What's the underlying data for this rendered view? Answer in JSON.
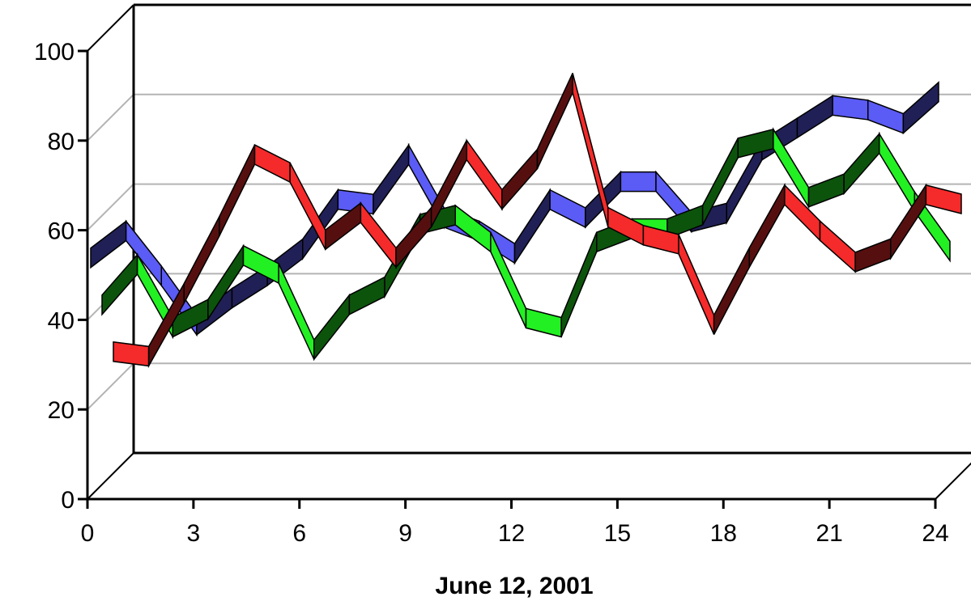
{
  "chart_data": {
    "type": "line",
    "style": "3d-ribbon",
    "title": "",
    "xlabel": "June 12, 2001",
    "ylabel": "",
    "xlim": [
      0,
      24
    ],
    "ylim": [
      0,
      100
    ],
    "x_ticks": [
      "0",
      "3",
      "6",
      "9",
      "12",
      "15",
      "18",
      "21",
      "24"
    ],
    "y_ticks": [
      "0",
      "20",
      "40",
      "60",
      "80",
      "100"
    ],
    "grid": true,
    "legend": "none",
    "x": [
      0,
      1,
      2,
      3,
      4,
      5,
      6,
      7,
      8,
      9,
      10,
      11,
      12,
      13,
      14,
      15,
      16,
      17,
      18,
      19,
      20,
      21,
      22,
      23,
      24
    ],
    "series": [
      {
        "color": "#5b5bf5",
        "values": [
          56,
          62,
          52,
          41,
          47,
          52,
          58,
          69,
          68,
          79,
          65,
          62,
          57,
          69,
          65,
          73,
          73,
          64,
          66,
          80,
          85,
          90,
          89,
          86,
          93
        ]
      },
      {
        "color": "#22f022",
        "values": [
          43,
          52,
          38,
          42,
          54,
          50,
          33,
          43,
          47,
          61,
          63,
          57,
          40,
          38,
          57,
          60,
          60,
          63,
          78,
          80,
          67,
          70,
          79,
          66,
          55
        ]
      },
      {
        "color": "#f52a2a",
        "values": [
          30,
          29,
          43,
          58,
          74,
          70,
          55,
          61,
          51,
          60,
          75,
          64,
          73,
          90,
          60,
          56,
          54,
          36,
          51,
          65,
          57,
          50,
          53,
          65,
          63
        ]
      }
    ]
  }
}
